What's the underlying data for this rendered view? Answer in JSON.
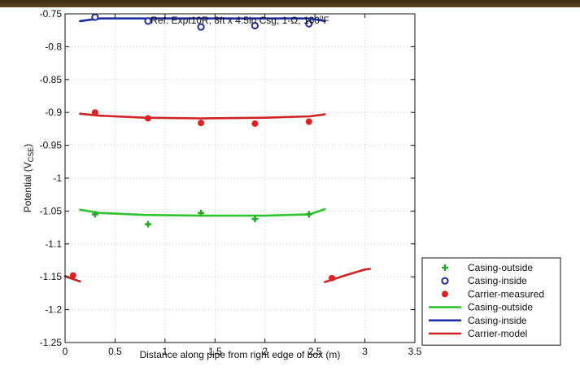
{
  "chart_data": {
    "type": "scatter",
    "title_prefix": "Ref:  Expt10R, 8ft x 4.5in Csg, 1-",
    "title_omega": "Ω",
    "title_mid": ", 160",
    "title_sup": "o",
    "title_suffix": "F",
    "xlabel": "Distance along pipe from right edge of box (m)",
    "ylabel_main": "Potential (V",
    "ylabel_sub": "CSE",
    "ylabel_end": ")",
    "xlim": [
      0,
      3.5
    ],
    "ylim": [
      -1.25,
      -0.75
    ],
    "xticks": [
      "0",
      "0.5",
      "1",
      "1.5",
      "2",
      "2.5",
      "3",
      "3.5"
    ],
    "yticks": [
      "-0.75",
      "-0.8",
      "-0.85",
      "-0.9",
      "-0.95",
      "-1",
      "-1.05",
      "-1.1",
      "-1.15",
      "-1.2",
      "-1.25"
    ],
    "grid": true,
    "legend_position": "bottom-right-outside",
    "series": [
      {
        "name": "Casing-outside",
        "kind": "marker",
        "marker": "plus",
        "color": "#22aa22",
        "x": [
          0.3,
          0.83,
          1.36,
          1.9,
          2.44
        ],
        "y": [
          -1.055,
          -1.07,
          -1.053,
          -1.062,
          -1.055
        ]
      },
      {
        "name": "Casing-inside",
        "kind": "marker",
        "marker": "circle-open",
        "color": "#1f2fa8",
        "x": [
          0.3,
          0.83,
          1.36,
          1.9,
          2.44
        ],
        "y": [
          -0.755,
          -0.761,
          -0.77,
          -0.768,
          -0.765
        ]
      },
      {
        "name": "Carrier-measured",
        "kind": "marker",
        "marker": "dot",
        "color": "#dd2222",
        "x": [
          0.08,
          0.3,
          0.83,
          1.36,
          1.9,
          2.44,
          2.67
        ],
        "y": [
          -1.148,
          -0.9,
          -0.909,
          -0.916,
          -0.917,
          -0.914,
          -1.152
        ]
      },
      {
        "name": "Casing-outside",
        "kind": "line",
        "color": "#2ec42e",
        "segments": [
          [
            [
              0.15,
              -1.048
            ],
            [
              0.35,
              -1.053
            ],
            [
              0.8,
              -1.056
            ],
            [
              1.36,
              -1.057
            ],
            [
              2.0,
              -1.057
            ],
            [
              2.45,
              -1.055
            ],
            [
              2.6,
              -1.047
            ]
          ]
        ]
      },
      {
        "name": "Casing-inside",
        "kind": "line",
        "color": "#1f2fa8",
        "segments": [
          [
            [
              0.15,
              -0.761
            ],
            [
              0.35,
              -0.757
            ],
            [
              0.8,
              -0.757
            ],
            [
              1.36,
              -0.757
            ],
            [
              2.0,
              -0.757
            ],
            [
              2.45,
              -0.757
            ],
            [
              2.6,
              -0.761
            ]
          ]
        ]
      },
      {
        "name": "Carrier-model",
        "kind": "line",
        "color": "#d12222",
        "segments": [
          [
            [
              0.0,
              -1.149
            ],
            [
              0.07,
              -1.153
            ],
            [
              0.15,
              -1.157
            ]
          ],
          [
            [
              0.15,
              -0.902
            ],
            [
              0.35,
              -0.905
            ],
            [
              0.8,
              -0.908
            ],
            [
              1.36,
              -0.909
            ],
            [
              2.0,
              -0.908
            ],
            [
              2.45,
              -0.906
            ],
            [
              2.6,
              -0.903
            ]
          ],
          [
            [
              2.6,
              -1.158
            ],
            [
              2.8,
              -1.148
            ],
            [
              3.0,
              -1.139
            ],
            [
              3.05,
              -1.138
            ]
          ]
        ]
      }
    ]
  }
}
